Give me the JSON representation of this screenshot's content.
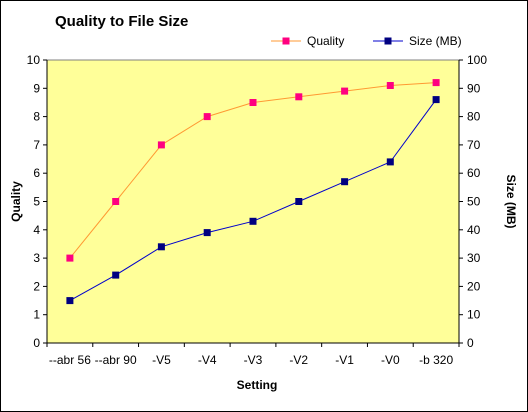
{
  "chart_data": {
    "type": "line",
    "title": "Quality to File Size",
    "xlabel": "Setting",
    "ylabel": "Quality",
    "y2label": "Size (MB)",
    "categories": [
      "--abr 56",
      "--abr 90",
      "-V5",
      "-V4",
      "-V3",
      "-V2",
      "-V1",
      "-V0",
      "-b 320"
    ],
    "ylim": [
      0,
      10
    ],
    "y2lim": [
      0,
      100
    ],
    "yticks": [
      "0",
      "1",
      "2",
      "3",
      "4",
      "5",
      "6",
      "7",
      "8",
      "9",
      "10"
    ],
    "y2ticks": [
      "0",
      "10",
      "20",
      "30",
      "40",
      "50",
      "60",
      "70",
      "80",
      "90",
      "100"
    ],
    "grid": false,
    "legend_position": "top-right",
    "plot_background": "#ffff99",
    "series": [
      {
        "name": "Quality",
        "axis": "left",
        "color": "#ff9933",
        "marker_color": "#ff0080",
        "marker": "square",
        "values": [
          3.0,
          5.0,
          7.0,
          8.0,
          8.5,
          8.7,
          8.9,
          9.1,
          9.2
        ]
      },
      {
        "name": "Size (MB)",
        "axis": "right",
        "color": "#0000cc",
        "marker_color": "#000080",
        "marker": "square",
        "values": [
          15,
          24,
          34,
          39,
          43,
          50,
          57,
          64,
          86
        ]
      }
    ]
  }
}
